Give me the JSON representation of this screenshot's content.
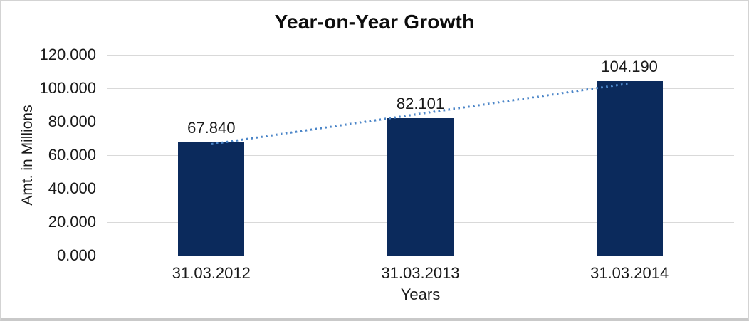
{
  "window": {
    "background": "#ffffff",
    "frame_border_color": "#d3d3d3"
  },
  "chart_data": {
    "type": "bar",
    "title": "Year-on-Year Growth",
    "categories": [
      "31.03.2012",
      "31.03.2013",
      "31.03.2014"
    ],
    "values": [
      67.84,
      82.101,
      104.19
    ],
    "data_labels": [
      "67.840",
      "82.101",
      "104.190"
    ],
    "xlabel": "Years",
    "ylabel": "Amt. in Millions",
    "ylim": [
      0,
      120
    ],
    "ytick_step": 20,
    "ytick_labels": [
      "0.000",
      "20.000",
      "40.000",
      "60.000",
      "80.000",
      "100.000",
      "120.000"
    ],
    "grid": true,
    "legend_position": "none",
    "bar_color": "#0B2A5C",
    "gridline_color": "#D9D9D9",
    "axis_line_color": "#D9D9D9",
    "text_color": "#1a1a1a",
    "trendline": {
      "type": "linear",
      "style": "dotted",
      "color": "#4C86C8"
    }
  }
}
